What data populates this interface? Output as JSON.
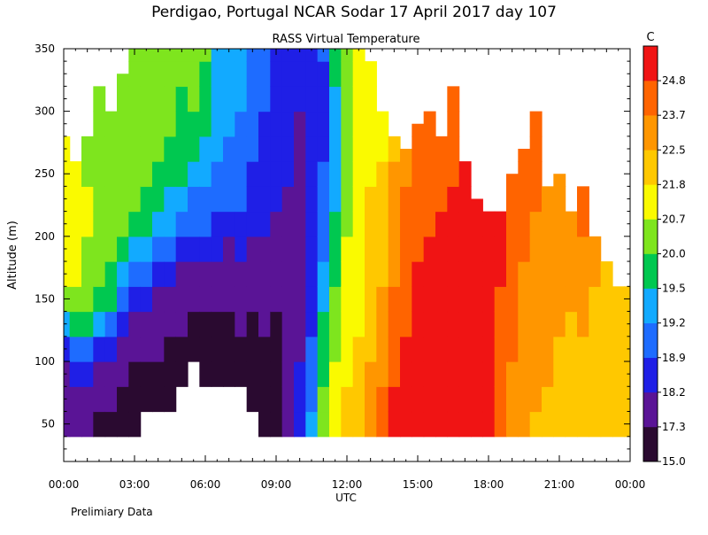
{
  "chart_data": {
    "type": "heatmap",
    "title": "Perdigao, Portugal  NCAR Sodar  17 April 2017  day 107",
    "subtitle": "RASS Virtual Temperature",
    "xlabel": "UTC",
    "ylabel": "Altitude (m)",
    "footnote": "Prelimiary Data",
    "xlim": [
      0,
      24
    ],
    "ylim": [
      20,
      350
    ],
    "x_ticks": [
      {
        "value": 0,
        "label": "00:00"
      },
      {
        "value": 3,
        "label": "03:00"
      },
      {
        "value": 6,
        "label": "06:00"
      },
      {
        "value": 9,
        "label": "09:00"
      },
      {
        "value": 12,
        "label": "12:00"
      },
      {
        "value": 15,
        "label": "15:00"
      },
      {
        "value": 18,
        "label": "18:00"
      },
      {
        "value": 21,
        "label": "21:00"
      },
      {
        "value": 24,
        "label": "00:00"
      }
    ],
    "y_ticks": [
      {
        "value": 50,
        "label": "50"
      },
      {
        "value": 100,
        "label": "100"
      },
      {
        "value": 150,
        "label": "150"
      },
      {
        "value": 200,
        "label": "200"
      },
      {
        "value": 250,
        "label": "250"
      },
      {
        "value": 300,
        "label": "300"
      },
      {
        "value": 350,
        "label": "350"
      }
    ],
    "colorbar": {
      "unit": "C",
      "levels": [
        15.0,
        17.3,
        18.2,
        18.9,
        19.2,
        19.5,
        20.0,
        20.7,
        21.8,
        22.5,
        23.7,
        24.8
      ],
      "labels": [
        "15.0",
        "17.3",
        "18.2",
        "18.9",
        "19.2",
        "19.5",
        "20.0",
        "20.7",
        "21.8",
        "22.5",
        "23.7",
        "24.8"
      ],
      "colors": [
        "#2a0a30",
        "#5a1496",
        "#1f1fe6",
        "#1e6cff",
        "#12aaff",
        "#00c850",
        "#7ee51e",
        "#fafa00",
        "#ffc800",
        "#ff9600",
        "#ff6400",
        "#f01414"
      ]
    },
    "altitude_levels": [
      40,
      60,
      80,
      100,
      120,
      140,
      160,
      180,
      200,
      220,
      240,
      260,
      280,
      300,
      320,
      340,
      350
    ],
    "profiles": [
      {
        "t": 0.0,
        "top": 280,
        "values": [
          1,
          1,
          1,
          2,
          4,
          6,
          7,
          7,
          7,
          7,
          7,
          7,
          7,
          7,
          7,
          7,
          7
        ]
      },
      {
        "t": 0.5,
        "top": 260,
        "values": [
          1,
          1,
          2,
          3,
          5,
          6,
          7,
          7,
          7,
          7,
          7,
          7,
          7,
          7,
          7,
          7,
          7
        ]
      },
      {
        "t": 1.0,
        "top": 280,
        "values": [
          1,
          1,
          2,
          3,
          5,
          6,
          6,
          6,
          7,
          7,
          6,
          6,
          6,
          6,
          7,
          7,
          7
        ]
      },
      {
        "t": 1.5,
        "top": 320,
        "values": [
          0,
          1,
          1,
          2,
          4,
          5,
          6,
          6,
          6,
          6,
          6,
          6,
          6,
          6,
          6,
          6,
          6
        ]
      },
      {
        "t": 2.0,
        "top": 300,
        "values": [
          0,
          1,
          1,
          2,
          3,
          5,
          5,
          6,
          6,
          6,
          6,
          6,
          6,
          6,
          6,
          6,
          6
        ]
      },
      {
        "t": 2.5,
        "top": 330,
        "values": [
          0,
          0,
          1,
          1,
          2,
          3,
          4,
          5,
          6,
          6,
          6,
          6,
          6,
          6,
          6,
          6,
          6
        ]
      },
      {
        "t": 3.0,
        "top": 350,
        "values": [
          0,
          0,
          0,
          1,
          1,
          2,
          3,
          4,
          5,
          6,
          6,
          6,
          6,
          6,
          6,
          6,
          6
        ]
      },
      {
        "t": 3.5,
        "top": 350,
        "values": [
          -1,
          0,
          0,
          1,
          1,
          2,
          3,
          4,
          5,
          5,
          6,
          6,
          6,
          6,
          6,
          6,
          6
        ]
      },
      {
        "t": 4.0,
        "top": 350,
        "values": [
          -1,
          0,
          0,
          1,
          1,
          1,
          2,
          3,
          4,
          5,
          5,
          6,
          6,
          6,
          6,
          6,
          6
        ]
      },
      {
        "t": 4.5,
        "top": 350,
        "values": [
          -1,
          0,
          0,
          0,
          1,
          1,
          2,
          3,
          4,
          4,
          5,
          5,
          6,
          6,
          6,
          6,
          6
        ]
      },
      {
        "t": 5.0,
        "top": 350,
        "values": [
          -1,
          -1,
          0,
          0,
          1,
          1,
          1,
          2,
          3,
          4,
          5,
          5,
          5,
          5,
          6,
          6,
          6
        ]
      },
      {
        "t": 5.5,
        "top": 350,
        "values": [
          -1,
          -1,
          -1,
          0,
          0,
          1,
          1,
          2,
          3,
          3,
          4,
          5,
          5,
          6,
          6,
          6,
          6
        ]
      },
      {
        "t": 6.0,
        "top": 350,
        "values": [
          -1,
          -1,
          0,
          0,
          0,
          1,
          1,
          2,
          3,
          3,
          4,
          4,
          5,
          5,
          5,
          6,
          6
        ]
      },
      {
        "t": 6.5,
        "top": 350,
        "values": [
          -1,
          -1,
          0,
          0,
          0,
          1,
          1,
          2,
          2,
          3,
          3,
          4,
          4,
          4,
          4,
          4,
          4
        ]
      },
      {
        "t": 7.0,
        "top": 350,
        "values": [
          -1,
          -1,
          0,
          0,
          0,
          1,
          1,
          1,
          2,
          3,
          3,
          3,
          4,
          4,
          4,
          4,
          4
        ]
      },
      {
        "t": 7.5,
        "top": 350,
        "values": [
          -1,
          -1,
          0,
          0,
          1,
          1,
          1,
          2,
          2,
          3,
          3,
          3,
          3,
          4,
          4,
          4,
          4
        ]
      },
      {
        "t": 8.0,
        "top": 350,
        "values": [
          -1,
          0,
          0,
          0,
          0,
          1,
          1,
          1,
          2,
          2,
          2,
          3,
          3,
          3,
          3,
          3,
          3
        ]
      },
      {
        "t": 8.5,
        "top": 350,
        "values": [
          0,
          0,
          0,
          0,
          1,
          1,
          1,
          1,
          2,
          2,
          2,
          2,
          2,
          3,
          3,
          3,
          3
        ]
      },
      {
        "t": 9.0,
        "top": 350,
        "values": [
          0,
          0,
          0,
          0,
          0,
          1,
          1,
          1,
          1,
          2,
          2,
          2,
          2,
          2,
          2,
          2,
          2
        ]
      },
      {
        "t": 9.5,
        "top": 350,
        "values": [
          1,
          1,
          1,
          1,
          1,
          1,
          1,
          1,
          1,
          1,
          2,
          2,
          2,
          2,
          2,
          2,
          2
        ]
      },
      {
        "t": 10.0,
        "top": 350,
        "values": [
          2,
          2,
          2,
          1,
          1,
          1,
          1,
          1,
          1,
          1,
          1,
          1,
          1,
          2,
          2,
          2,
          2
        ]
      },
      {
        "t": 10.5,
        "top": 350,
        "values": [
          4,
          3,
          3,
          3,
          2,
          2,
          2,
          2,
          2,
          2,
          2,
          2,
          2,
          2,
          2,
          2,
          2
        ]
      },
      {
        "t": 11.0,
        "top": 350,
        "values": [
          6,
          6,
          5,
          5,
          5,
          4,
          4,
          3,
          3,
          3,
          3,
          2,
          2,
          2,
          2,
          3,
          3
        ]
      },
      {
        "t": 11.5,
        "top": 350,
        "values": [
          7,
          7,
          7,
          6,
          6,
          6,
          5,
          5,
          5,
          4,
          4,
          4,
          4,
          4,
          5,
          5,
          5
        ]
      },
      {
        "t": 12.0,
        "top": 350,
        "values": [
          8,
          8,
          7,
          7,
          7,
          7,
          7,
          7,
          6,
          6,
          6,
          6,
          6,
          6,
          6,
          6,
          6
        ]
      },
      {
        "t": 12.5,
        "top": 350,
        "values": [
          8,
          8,
          8,
          8,
          7,
          7,
          7,
          7,
          7,
          7,
          7,
          7,
          7,
          7,
          7,
          7,
          7
        ]
      },
      {
        "t": 13.0,
        "top": 340,
        "values": [
          9,
          9,
          9,
          8,
          8,
          8,
          8,
          8,
          8,
          8,
          7,
          7,
          7,
          7,
          7,
          7,
          6
        ]
      },
      {
        "t": 13.5,
        "top": 300,
        "values": [
          10,
          10,
          9,
          9,
          9,
          9,
          8,
          8,
          8,
          8,
          8,
          7,
          7,
          7,
          7,
          7,
          7
        ]
      },
      {
        "t": 14.0,
        "top": 280,
        "values": [
          11,
          11,
          10,
          10,
          10,
          10,
          9,
          9,
          9,
          9,
          9,
          8,
          8,
          8,
          8,
          8,
          8
        ]
      },
      {
        "t": 14.5,
        "top": 270,
        "values": [
          11,
          11,
          11,
          11,
          10,
          10,
          10,
          10,
          10,
          10,
          9,
          9,
          9,
          9,
          9,
          9,
          9
        ]
      },
      {
        "t": 15.0,
        "top": 290,
        "values": [
          11,
          11,
          11,
          11,
          11,
          11,
          11,
          10,
          10,
          10,
          10,
          10,
          10,
          9,
          9,
          9,
          9
        ]
      },
      {
        "t": 15.5,
        "top": 300,
        "values": [
          11,
          11,
          11,
          11,
          11,
          11,
          11,
          11,
          10,
          10,
          10,
          10,
          10,
          10,
          10,
          10,
          10
        ]
      },
      {
        "t": 16.0,
        "top": 280,
        "values": [
          11,
          11,
          11,
          11,
          11,
          11,
          11,
          11,
          11,
          10,
          10,
          10,
          10,
          10,
          10,
          10,
          10
        ]
      },
      {
        "t": 16.5,
        "top": 320,
        "values": [
          11,
          11,
          11,
          11,
          11,
          11,
          11,
          11,
          11,
          11,
          10,
          10,
          10,
          10,
          10,
          10,
          10
        ]
      },
      {
        "t": 17.0,
        "top": 260,
        "values": [
          11,
          11,
          11,
          11,
          11,
          11,
          11,
          11,
          11,
          11,
          11,
          10,
          10,
          10,
          10,
          10,
          10
        ]
      },
      {
        "t": 17.5,
        "top": 230,
        "values": [
          11,
          11,
          11,
          11,
          11,
          11,
          11,
          11,
          11,
          11,
          11,
          11,
          11,
          11,
          11,
          11,
          11
        ]
      },
      {
        "t": 18.0,
        "top": 220,
        "values": [
          11,
          11,
          11,
          11,
          11,
          11,
          11,
          11,
          11,
          11,
          11,
          11,
          11,
          11,
          11,
          11,
          11
        ]
      },
      {
        "t": 18.5,
        "top": 220,
        "values": [
          10,
          10,
          10,
          10,
          10,
          10,
          11,
          11,
          11,
          11,
          11,
          11,
          11,
          11,
          11,
          11,
          11
        ]
      },
      {
        "t": 19.0,
        "top": 250,
        "values": [
          9,
          9,
          9,
          10,
          10,
          10,
          10,
          10,
          10,
          10,
          10,
          10,
          10,
          10,
          10,
          10,
          10
        ]
      },
      {
        "t": 19.5,
        "top": 270,
        "values": [
          9,
          9,
          9,
          9,
          9,
          9,
          9,
          10,
          10,
          10,
          10,
          10,
          10,
          10,
          10,
          10,
          10
        ]
      },
      {
        "t": 20.0,
        "top": 300,
        "values": [
          8,
          9,
          9,
          9,
          9,
          9,
          9,
          9,
          9,
          10,
          10,
          10,
          10,
          11,
          11,
          11,
          11
        ]
      },
      {
        "t": 20.5,
        "top": 240,
        "values": [
          8,
          8,
          9,
          9,
          9,
          9,
          9,
          9,
          9,
          9,
          9,
          9,
          9,
          9,
          9,
          9,
          9
        ]
      },
      {
        "t": 21.0,
        "top": 250,
        "values": [
          8,
          8,
          8,
          8,
          9,
          9,
          9,
          9,
          9,
          9,
          9,
          9,
          9,
          9,
          9,
          9,
          9
        ]
      },
      {
        "t": 21.5,
        "top": 220,
        "values": [
          8,
          8,
          8,
          8,
          8,
          9,
          9,
          9,
          9,
          9,
          9,
          9,
          9,
          9,
          9,
          9,
          9
        ]
      },
      {
        "t": 22.0,
        "top": 240,
        "values": [
          8,
          8,
          8,
          8,
          9,
          9,
          9,
          9,
          10,
          10,
          9,
          9,
          9,
          9,
          9,
          9,
          9
        ]
      },
      {
        "t": 22.5,
        "top": 200,
        "values": [
          8,
          8,
          8,
          8,
          8,
          8,
          9,
          9,
          9,
          9,
          9,
          9,
          9,
          9,
          9,
          9,
          9
        ]
      },
      {
        "t": 23.0,
        "top": 180,
        "values": [
          8,
          8,
          8,
          8,
          8,
          8,
          8,
          9,
          9,
          9,
          9,
          9,
          9,
          9,
          9,
          9,
          9
        ]
      },
      {
        "t": 23.5,
        "top": 160,
        "values": [
          8,
          8,
          8,
          8,
          8,
          8,
          8,
          9,
          9,
          9,
          9,
          9,
          9,
          9,
          9,
          9,
          9
        ]
      },
      {
        "t": 24.0,
        "top": 160,
        "values": [
          8,
          8,
          8,
          8,
          8,
          8,
          8,
          9,
          9,
          9,
          9,
          9,
          9,
          9,
          9,
          9,
          9
        ]
      }
    ]
  }
}
